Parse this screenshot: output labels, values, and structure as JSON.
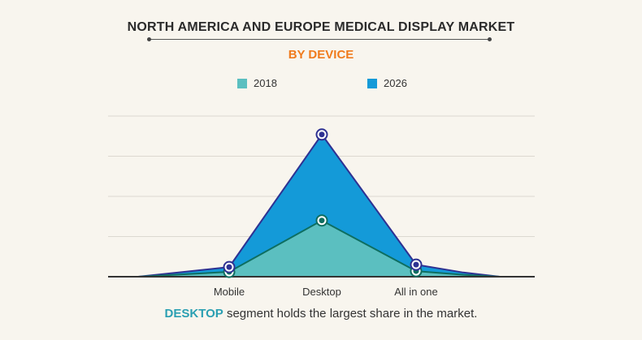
{
  "chart_data": {
    "type": "area",
    "title": "NORTH AMERICA AND EUROPE MEDICAL DISPLAY MARKET",
    "subtitle": "BY DEVICE",
    "categories": [
      "Mobile",
      "Desktop",
      "All in one"
    ],
    "series": [
      {
        "name": "2018",
        "values": [
          0.12,
          1.4,
          0.14
        ],
        "color": "#5bbfc0",
        "line_color": "#0e6e60"
      },
      {
        "name": "2026",
        "values": [
          0.24,
          3.54,
          0.3
        ],
        "color": "#149ad8",
        "line_color": "#2e3192"
      }
    ],
    "ylim": [
      0,
      4
    ],
    "grid": true,
    "legend": "top-center",
    "xlabel": "",
    "ylabel": ""
  },
  "caption": {
    "highlight": "DESKTOP",
    "text": " segment holds the largest share in the market."
  }
}
